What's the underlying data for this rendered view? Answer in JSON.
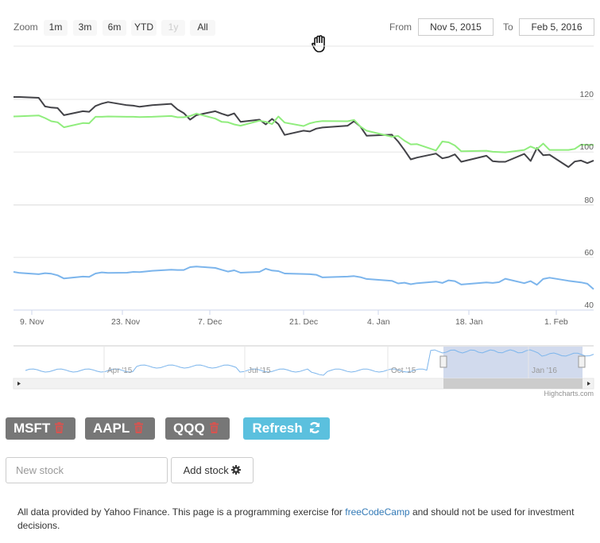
{
  "range_selector": {
    "zoom_label": "Zoom",
    "buttons": [
      "1m",
      "3m",
      "6m",
      "YTD",
      "1y",
      "All"
    ],
    "from_label": "From",
    "from_value": "Nov 5, 2015",
    "to_label": "To",
    "to_value": "Feb 5, 2016"
  },
  "chart_data": {
    "type": "line",
    "x": [
      "2015-11-05",
      "2015-11-06",
      "2015-11-09",
      "2015-11-10",
      "2015-11-11",
      "2015-11-12",
      "2015-11-13",
      "2015-11-16",
      "2015-11-17",
      "2015-11-18",
      "2015-11-19",
      "2015-11-20",
      "2015-11-23",
      "2015-11-24",
      "2015-11-25",
      "2015-11-27",
      "2015-11-30",
      "2015-12-01",
      "2015-12-02",
      "2015-12-03",
      "2015-12-04",
      "2015-12-07",
      "2015-12-08",
      "2015-12-09",
      "2015-12-10",
      "2015-12-11",
      "2015-12-14",
      "2015-12-15",
      "2015-12-16",
      "2015-12-17",
      "2015-12-18",
      "2015-12-21",
      "2015-12-22",
      "2015-12-23",
      "2015-12-24",
      "2015-12-28",
      "2015-12-29",
      "2015-12-30",
      "2015-12-31",
      "2016-01-04",
      "2016-01-05",
      "2016-01-06",
      "2016-01-07",
      "2016-01-08",
      "2016-01-11",
      "2016-01-12",
      "2016-01-13",
      "2016-01-14",
      "2016-01-15",
      "2016-01-19",
      "2016-01-20",
      "2016-01-21",
      "2016-01-22",
      "2016-01-25",
      "2016-01-26",
      "2016-01-27",
      "2016-01-28",
      "2016-01-29",
      "2016-02-01",
      "2016-02-02",
      "2016-02-03",
      "2016-02-04",
      "2016-02-05"
    ],
    "series": [
      {
        "name": "MSFT",
        "color": "#434348",
        "values": [
          120.9,
          120.9,
          120.6,
          117.3,
          116.9,
          116.7,
          114.0,
          115.5,
          115.3,
          117.5,
          118.4,
          119.0,
          117.8,
          117.6,
          117.2,
          117.8,
          118.3,
          116.2,
          114.8,
          112.3,
          114.0,
          115.5,
          114.6,
          113.8,
          114.7,
          111.5,
          112.3,
          110.5,
          112.6,
          110.6,
          106.5,
          108.1,
          107.8,
          108.9,
          109.3,
          110.0,
          111.7,
          109.7,
          106.2,
          106.6,
          104.0,
          100.7,
          97.2,
          97.9,
          99.4,
          97.6,
          98.1,
          99.1,
          96.3,
          98.6,
          96.5,
          96.3,
          96.3,
          99.3,
          96.6,
          101.5,
          98.8,
          99.0,
          94.3,
          96.4,
          96.8,
          95.8,
          96.8
        ]
      },
      {
        "name": "QQQ",
        "color": "#90ed7d",
        "values": [
          113.5,
          113.6,
          113.9,
          112.9,
          111.7,
          111.3,
          109.4,
          111.0,
          110.9,
          113.4,
          113.4,
          113.5,
          113.4,
          113.4,
          113.3,
          113.4,
          113.7,
          113.2,
          113.2,
          113.7,
          114.6,
          112.7,
          111.5,
          111.3,
          110.5,
          110.0,
          111.9,
          111.5,
          110.6,
          113.5,
          111.2,
          109.9,
          110.9,
          111.5,
          111.8,
          111.7,
          112.2,
          109.7,
          108.1,
          105.8,
          106.1,
          104.3,
          102.9,
          103.0,
          100.6,
          104.0,
          103.7,
          102.5,
          100.3,
          100.5,
          100.1,
          100.0,
          99.9,
          100.8,
          102.1,
          101.1,
          103.2,
          100.8,
          100.8,
          101.2,
          102.8,
          102.7,
          102.7
        ]
      },
      {
        "name": "AAPL",
        "color": "#7cb5ec",
        "values": [
          54.5,
          54.1,
          53.6,
          54.0,
          53.8,
          53.2,
          52.0,
          52.7,
          52.6,
          53.9,
          54.3,
          54.1,
          54.2,
          54.5,
          54.4,
          54.9,
          55.3,
          55.2,
          55.2,
          56.3,
          56.5,
          56.0,
          55.3,
          54.6,
          55.1,
          54.2,
          54.5,
          55.7,
          55.0,
          54.8,
          53.9,
          53.7,
          53.6,
          53.4,
          52.4,
          52.7,
          52.9,
          52.5,
          51.8,
          51.1,
          50.1,
          50.4,
          49.8,
          50.2,
          50.8,
          50.3,
          51.3,
          51.0,
          49.7,
          50.5,
          50.3,
          50.6,
          51.9,
          50.2,
          51.0,
          49.6,
          51.8,
          52.3,
          51.1,
          50.8,
          50.5,
          50.0,
          47.9
        ]
      }
    ],
    "x_tick_labels": [
      "9. Nov",
      "23. Nov",
      "7. Dec",
      "21. Dec",
      "4. Jan",
      "18. Jan",
      "1. Feb"
    ],
    "y_tick_labels": [
      "40",
      "60",
      "80",
      "100",
      "120"
    ],
    "ylim": [
      40,
      120
    ],
    "grid": true,
    "navigator_labels": [
      "Apr '15",
      "Jul '15",
      "Oct '15",
      "Jan '16"
    ]
  },
  "credits": "Highcharts.com",
  "stocks": [
    {
      "symbol": "MSFT"
    },
    {
      "symbol": "AAPL"
    },
    {
      "symbol": "QQQ"
    }
  ],
  "refresh_label": "Refresh",
  "new_stock_placeholder": "New stock",
  "add_stock_label": "Add stock",
  "footer": {
    "text_before": "All data provided by Yahoo Finance. This page is a programming exercise for ",
    "link": "freeCodeCamp",
    "text_after": " and should not be used for investment decisions."
  },
  "colors": {
    "stock_button": "#777777",
    "trash_icon": "#d9534f",
    "refresh_button": "#5bc0de",
    "link": "#337ab7",
    "navigator_fill": "#7cb5ec"
  },
  "icons": [
    "hand-cursor-icon",
    "trash-icon",
    "refresh-icon",
    "gear-icon"
  ]
}
